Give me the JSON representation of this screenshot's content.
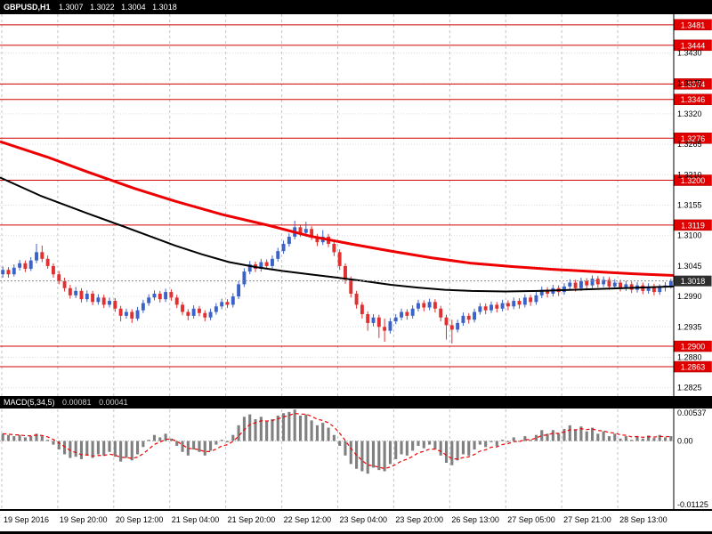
{
  "window": {
    "title": "GBPUSD,H1",
    "ohlc_open": "1.3007",
    "ohlc_high": "1.3022",
    "ohlc_low": "1.3004",
    "ohlc_close": "1.3018"
  },
  "indicator": {
    "name": "MACD(5,34,5)",
    "macd_value": "0.00081",
    "signal_value": "0.00041"
  },
  "colors": {
    "background": "#ffffff",
    "bull": "#3b62c8",
    "bear": "#e03030",
    "ma_red": "#ee0000",
    "ma_black": "#000000",
    "level": "#d40000",
    "level_box": "#e00000",
    "grid_v": "#c3c3c3",
    "grid_h": "#dedede",
    "bid_line": "#8c8c8c",
    "bid_box": "#2e2e2e",
    "macd_bar": "#808080",
    "macd_signal": "#ee0000",
    "axis_text": "#000000",
    "panel_bar_bg": "#000000",
    "panel_bar_text": "#ffffff"
  },
  "price_axis": {
    "ticks": [
      1.343,
      1.3375,
      1.332,
      1.3265,
      1.321,
      1.3155,
      1.31,
      1.3045,
      1.299,
      1.2935,
      1.288,
      1.2825
    ],
    "current": 1.3018
  },
  "time_axis": {
    "labels": [
      "19 Sep 2016",
      "19 Sep 20:00",
      "20 Sep 12:00",
      "21 Sep 04:00",
      "21 Sep 20:00",
      "22 Sep 12:00",
      "23 Sep 04:00",
      "23 Sep 20:00",
      "26 Sep 13:00",
      "27 Sep 05:00",
      "27 Sep 21:00",
      "28 Sep 13:00"
    ]
  },
  "macd_axis": {
    "ticks": [
      0.00537,
      0,
      -0.01125
    ],
    "labels": [
      "0.00537",
      "0.00",
      "-0.01125"
    ]
  },
  "chart_data": [
    {
      "type": "candlestick",
      "title": "GBPUSD H1 with MACD(5,34,5)",
      "symbol": "GBPUSD",
      "timeframe": "H1",
      "ylim": [
        1.281,
        1.35
      ],
      "levels": [
        1.3481,
        1.3444,
        1.3374,
        1.3346,
        1.3276,
        1.32,
        1.3119,
        1.29,
        1.2863
      ],
      "current_price": 1.3018,
      "candles": [
        [
          1.303,
          1.3044,
          1.3024,
          1.3038
        ],
        [
          1.3038,
          1.3043,
          1.3024,
          1.303
        ],
        [
          1.303,
          1.3048,
          1.3026,
          1.3042
        ],
        [
          1.3042,
          1.3056,
          1.3037,
          1.305
        ],
        [
          1.305,
          1.3055,
          1.3034,
          1.304
        ],
        [
          1.304,
          1.3061,
          1.3036,
          1.3055
        ],
        [
          1.3055,
          1.3085,
          1.305,
          1.307
        ],
        [
          1.307,
          1.3082,
          1.3052,
          1.3058
        ],
        [
          1.3058,
          1.3064,
          1.304,
          1.3045
        ],
        [
          1.3045,
          1.305,
          1.3024,
          1.303
        ],
        [
          1.303,
          1.3036,
          1.3012,
          1.3018
        ],
        [
          1.3018,
          1.3024,
          1.2999,
          1.3005
        ],
        [
          1.3005,
          1.3011,
          1.2986,
          1.2992
        ],
        [
          1.2992,
          1.3007,
          1.2987,
          1.3
        ],
        [
          1.3,
          1.3005,
          1.2979,
          1.2985
        ],
        [
          1.2985,
          1.3001,
          1.298,
          1.2995
        ],
        [
          1.2995,
          1.3,
          1.2974,
          1.298
        ],
        [
          1.298,
          1.2994,
          1.2975,
          1.2988
        ],
        [
          1.2988,
          1.2993,
          1.2969,
          1.2975
        ],
        [
          1.2975,
          1.2988,
          1.297,
          1.2982
        ],
        [
          1.2982,
          1.2987,
          1.2962,
          1.2968
        ],
        [
          1.2968,
          1.2973,
          1.2945,
          1.2955
        ],
        [
          1.2955,
          1.2968,
          1.295,
          1.2962
        ],
        [
          1.2962,
          1.2967,
          1.2942,
          1.295
        ],
        [
          1.295,
          1.2971,
          1.2946,
          1.2965
        ],
        [
          1.2965,
          1.2984,
          1.296,
          1.2978
        ],
        [
          1.2978,
          1.2994,
          1.2973,
          1.2988
        ],
        [
          1.2988,
          1.3001,
          1.2983,
          1.2995
        ],
        [
          1.2995,
          1.3,
          1.2979,
          1.2985
        ],
        [
          1.2985,
          1.3004,
          1.298,
          1.2998
        ],
        [
          1.2998,
          1.3003,
          1.2982,
          1.2988
        ],
        [
          1.2988,
          1.2993,
          1.2969,
          1.2975
        ],
        [
          1.2975,
          1.298,
          1.2956,
          1.2962
        ],
        [
          1.2962,
          1.2967,
          1.2947,
          1.2955
        ],
        [
          1.2955,
          1.2974,
          1.295,
          1.2968
        ],
        [
          1.2968,
          1.2973,
          1.2954,
          1.296
        ],
        [
          1.296,
          1.2965,
          1.2945,
          1.2952
        ],
        [
          1.2952,
          1.2968,
          1.2947,
          1.2962
        ],
        [
          1.2962,
          1.2978,
          1.2957,
          1.2972
        ],
        [
          1.2972,
          1.2986,
          1.2967,
          1.298
        ],
        [
          1.298,
          1.2985,
          1.2969,
          1.2975
        ],
        [
          1.2975,
          1.2996,
          1.297,
          1.299
        ],
        [
          1.299,
          1.3018,
          1.2985,
          1.3012
        ],
        [
          1.3012,
          1.3041,
          1.3007,
          1.3035
        ],
        [
          1.3035,
          1.3054,
          1.303,
          1.3048
        ],
        [
          1.3048,
          1.3053,
          1.3034,
          1.304
        ],
        [
          1.304,
          1.3058,
          1.3035,
          1.3052
        ],
        [
          1.3052,
          1.3057,
          1.3039,
          1.3045
        ],
        [
          1.3045,
          1.3064,
          1.304,
          1.3058
        ],
        [
          1.3058,
          1.3078,
          1.3053,
          1.3072
        ],
        [
          1.3072,
          1.3091,
          1.3067,
          1.3085
        ],
        [
          1.3085,
          1.3104,
          1.308,
          1.3098
        ],
        [
          1.3098,
          1.3127,
          1.3093,
          1.3115
        ],
        [
          1.3115,
          1.312,
          1.3098,
          1.3105
        ],
        [
          1.3105,
          1.3125,
          1.31,
          1.3112
        ],
        [
          1.3112,
          1.3117,
          1.3092,
          1.3098
        ],
        [
          1.3098,
          1.3103,
          1.3081,
          1.3088
        ],
        [
          1.3088,
          1.311,
          1.3083,
          1.3098
        ],
        [
          1.3098,
          1.3103,
          1.3079,
          1.3085
        ],
        [
          1.3085,
          1.3091,
          1.3063,
          1.307
        ],
        [
          1.307,
          1.3075,
          1.3038,
          1.3045
        ],
        [
          1.3045,
          1.305,
          1.3013,
          1.302
        ],
        [
          1.302,
          1.3026,
          1.2988,
          1.2995
        ],
        [
          1.2995,
          1.3,
          1.2968,
          1.2975
        ],
        [
          1.2975,
          1.298,
          1.295,
          1.2958
        ],
        [
          1.2958,
          1.2963,
          1.2928,
          1.2942
        ],
        [
          1.2942,
          1.2958,
          1.2936,
          1.2952
        ],
        [
          1.2952,
          1.2957,
          1.2915,
          1.2935
        ],
        [
          1.2935,
          1.295,
          1.2908,
          1.2928
        ],
        [
          1.2928,
          1.2951,
          1.2923,
          1.2945
        ],
        [
          1.2945,
          1.2958,
          1.294,
          1.2952
        ],
        [
          1.2952,
          1.2968,
          1.2947,
          1.2962
        ],
        [
          1.2962,
          1.2967,
          1.2948,
          1.2955
        ],
        [
          1.2955,
          1.2974,
          1.295,
          1.2968
        ],
        [
          1.2968,
          1.2984,
          1.2963,
          1.2978
        ],
        [
          1.2978,
          1.2983,
          1.2963,
          1.297
        ],
        [
          1.297,
          1.2986,
          1.2965,
          1.298
        ],
        [
          1.298,
          1.2985,
          1.2961,
          1.2968
        ],
        [
          1.2968,
          1.2973,
          1.2945,
          1.2952
        ],
        [
          1.2952,
          1.2957,
          1.2912,
          1.2938
        ],
        [
          1.2938,
          1.2948,
          1.2905,
          1.293
        ],
        [
          1.293,
          1.2948,
          1.2925,
          1.2942
        ],
        [
          1.2942,
          1.2961,
          1.2937,
          1.2955
        ],
        [
          1.2955,
          1.296,
          1.2941,
          1.2948
        ],
        [
          1.2948,
          1.2968,
          1.2943,
          1.2962
        ],
        [
          1.2962,
          1.2978,
          1.2957,
          1.2972
        ],
        [
          1.2972,
          1.2977,
          1.2958,
          1.2965
        ],
        [
          1.2965,
          1.2981,
          1.296,
          1.2975
        ],
        [
          1.2975,
          1.298,
          1.2961,
          1.2968
        ],
        [
          1.2968,
          1.2984,
          1.2963,
          1.2978
        ],
        [
          1.2978,
          1.2983,
          1.2965,
          1.2972
        ],
        [
          1.2972,
          1.2988,
          1.2967,
          1.2982
        ],
        [
          1.2982,
          1.2987,
          1.2968,
          1.2975
        ],
        [
          1.2975,
          1.2994,
          1.297,
          1.2988
        ],
        [
          1.2988,
          1.2993,
          1.2973,
          1.298
        ],
        [
          1.298,
          1.2998,
          1.2975,
          1.2992
        ],
        [
          1.2992,
          1.3008,
          1.2987,
          1.3002
        ],
        [
          1.3002,
          1.3007,
          1.2988,
          1.2995
        ],
        [
          1.2995,
          1.3011,
          1.299,
          1.3005
        ],
        [
          1.3005,
          1.301,
          1.2991,
          1.2998
        ],
        [
          1.2998,
          1.3014,
          1.2993,
          1.3008
        ],
        [
          1.3008,
          1.3021,
          1.3003,
          1.3015
        ],
        [
          1.3015,
          1.302,
          1.2999,
          1.3005
        ],
        [
          1.3005,
          1.3024,
          1.3,
          1.3018
        ],
        [
          1.3018,
          1.3023,
          1.3004,
          1.301
        ],
        [
          1.301,
          1.3028,
          1.3005,
          1.3022
        ],
        [
          1.3022,
          1.3027,
          1.3006,
          1.3012
        ],
        [
          1.3012,
          1.3026,
          1.3007,
          1.302
        ],
        [
          1.302,
          1.3025,
          1.3002,
          1.3008
        ],
        [
          1.3008,
          1.3021,
          1.3003,
          1.3015
        ],
        [
          1.3015,
          1.302,
          1.2999,
          1.3005
        ],
        [
          1.3005,
          1.3018,
          1.3,
          1.3012
        ],
        [
          1.3012,
          1.3017,
          1.2996,
          1.3002
        ],
        [
          1.3002,
          1.3016,
          1.2997,
          1.301
        ],
        [
          1.301,
          1.3015,
          1.2994,
          1.3
        ],
        [
          1.3,
          1.3014,
          1.2995,
          1.3008
        ],
        [
          1.3008,
          1.3013,
          1.2992,
          1.2998
        ],
        [
          1.2998,
          1.3012,
          1.2993,
          1.3007
        ],
        [
          1.3007,
          1.3016,
          1.2999,
          1.301
        ],
        [
          1.3007,
          1.3022,
          1.3004,
          1.3018
        ]
      ],
      "overlays": [
        {
          "name": "ma-red",
          "color": "#ee0000",
          "width": 3,
          "points": [
            [
              0,
              1.327
            ],
            [
              0.07,
              1.3242
            ],
            [
              0.13,
              1.3215
            ],
            [
              0.2,
              1.3185
            ],
            [
              0.26,
              1.3162
            ],
            [
              0.33,
              1.3138
            ],
            [
              0.4,
              1.3118
            ],
            [
              0.46,
              1.3099
            ],
            [
              0.52,
              1.3085
            ],
            [
              0.58,
              1.3072
            ],
            [
              0.64,
              1.306
            ],
            [
              0.7,
              1.305
            ],
            [
              0.76,
              1.3044
            ],
            [
              0.82,
              1.3039
            ],
            [
              0.88,
              1.3035
            ],
            [
              0.94,
              1.3031
            ],
            [
              1,
              1.3028
            ]
          ]
        },
        {
          "name": "ma-black",
          "color": "#000000",
          "width": 2,
          "points": [
            [
              0,
              1.3205
            ],
            [
              0.06,
              1.3172
            ],
            [
              0.13,
              1.314
            ],
            [
              0.18,
              1.3118
            ],
            [
              0.22,
              1.31
            ],
            [
              0.26,
              1.3082
            ],
            [
              0.3,
              1.3066
            ],
            [
              0.34,
              1.3052
            ],
            [
              0.38,
              1.3043
            ],
            [
              0.42,
              1.3036
            ],
            [
              0.46,
              1.303
            ],
            [
              0.5,
              1.3024
            ],
            [
              0.54,
              1.3018
            ],
            [
              0.58,
              1.3011
            ],
            [
              0.62,
              1.3006
            ],
            [
              0.66,
              1.3002
            ],
            [
              0.7,
              1.3
            ],
            [
              0.75,
              1.2999
            ],
            [
              0.8,
              1.3
            ],
            [
              0.85,
              1.3002
            ],
            [
              0.9,
              1.3004
            ],
            [
              0.95,
              1.3006
            ],
            [
              1,
              1.3008
            ]
          ]
        }
      ]
    },
    {
      "type": "bar",
      "name": "MACD(5,34,5)",
      "ylim": [
        -0.01125,
        0.00537
      ],
      "signal_smoothing": 3,
      "values": [
        0.0012,
        0.001,
        0.0008,
        0.001,
        0.0006,
        0.0008,
        0.0012,
        0.0008,
        0.0002,
        -0.0006,
        -0.0014,
        -0.0022,
        -0.0028,
        -0.0026,
        -0.003,
        -0.0024,
        -0.0028,
        -0.0022,
        -0.0024,
        -0.0018,
        -0.0026,
        -0.0034,
        -0.0028,
        -0.0032,
        -0.0022,
        -0.001,
        0.0002,
        0.001,
        0.0006,
        0.0012,
        0.0004,
        -0.0008,
        -0.0018,
        -0.0024,
        -0.0014,
        -0.0018,
        -0.0024,
        -0.0016,
        -0.0006,
        0.0002,
        -0.0002,
        0.001,
        0.0026,
        0.004,
        0.0044,
        0.0036,
        0.004,
        0.0032,
        0.0036,
        0.0042,
        0.0046,
        0.0048,
        0.0052,
        0.0042,
        0.0044,
        0.0034,
        0.0026,
        0.003,
        0.0022,
        0.001,
        -0.0008,
        -0.0024,
        -0.0038,
        -0.0046,
        -0.005,
        -0.0054,
        -0.0044,
        -0.0048,
        -0.005,
        -0.0038,
        -0.003,
        -0.0022,
        -0.0024,
        -0.0016,
        -0.0008,
        -0.0012,
        -0.0006,
        -0.0014,
        -0.0024,
        -0.0036,
        -0.004,
        -0.0032,
        -0.0022,
        -0.0024,
        -0.0014,
        -0.0006,
        -0.001,
        -0.0002,
        -0.0008,
        0.0002,
        -0.0002,
        0.0006,
        0.0,
        0.0008,
        0.0002,
        0.001,
        0.0018,
        0.0012,
        0.0018,
        0.0012,
        0.002,
        0.0026,
        0.0018,
        0.0024,
        0.0016,
        0.0022,
        0.0012,
        0.0016,
        0.0008,
        0.0012,
        0.0004,
        0.0008,
        0.0002,
        0.0008,
        0.0004,
        0.0009,
        0.0005,
        0.001,
        0.0006,
        0.00081
      ]
    }
  ]
}
